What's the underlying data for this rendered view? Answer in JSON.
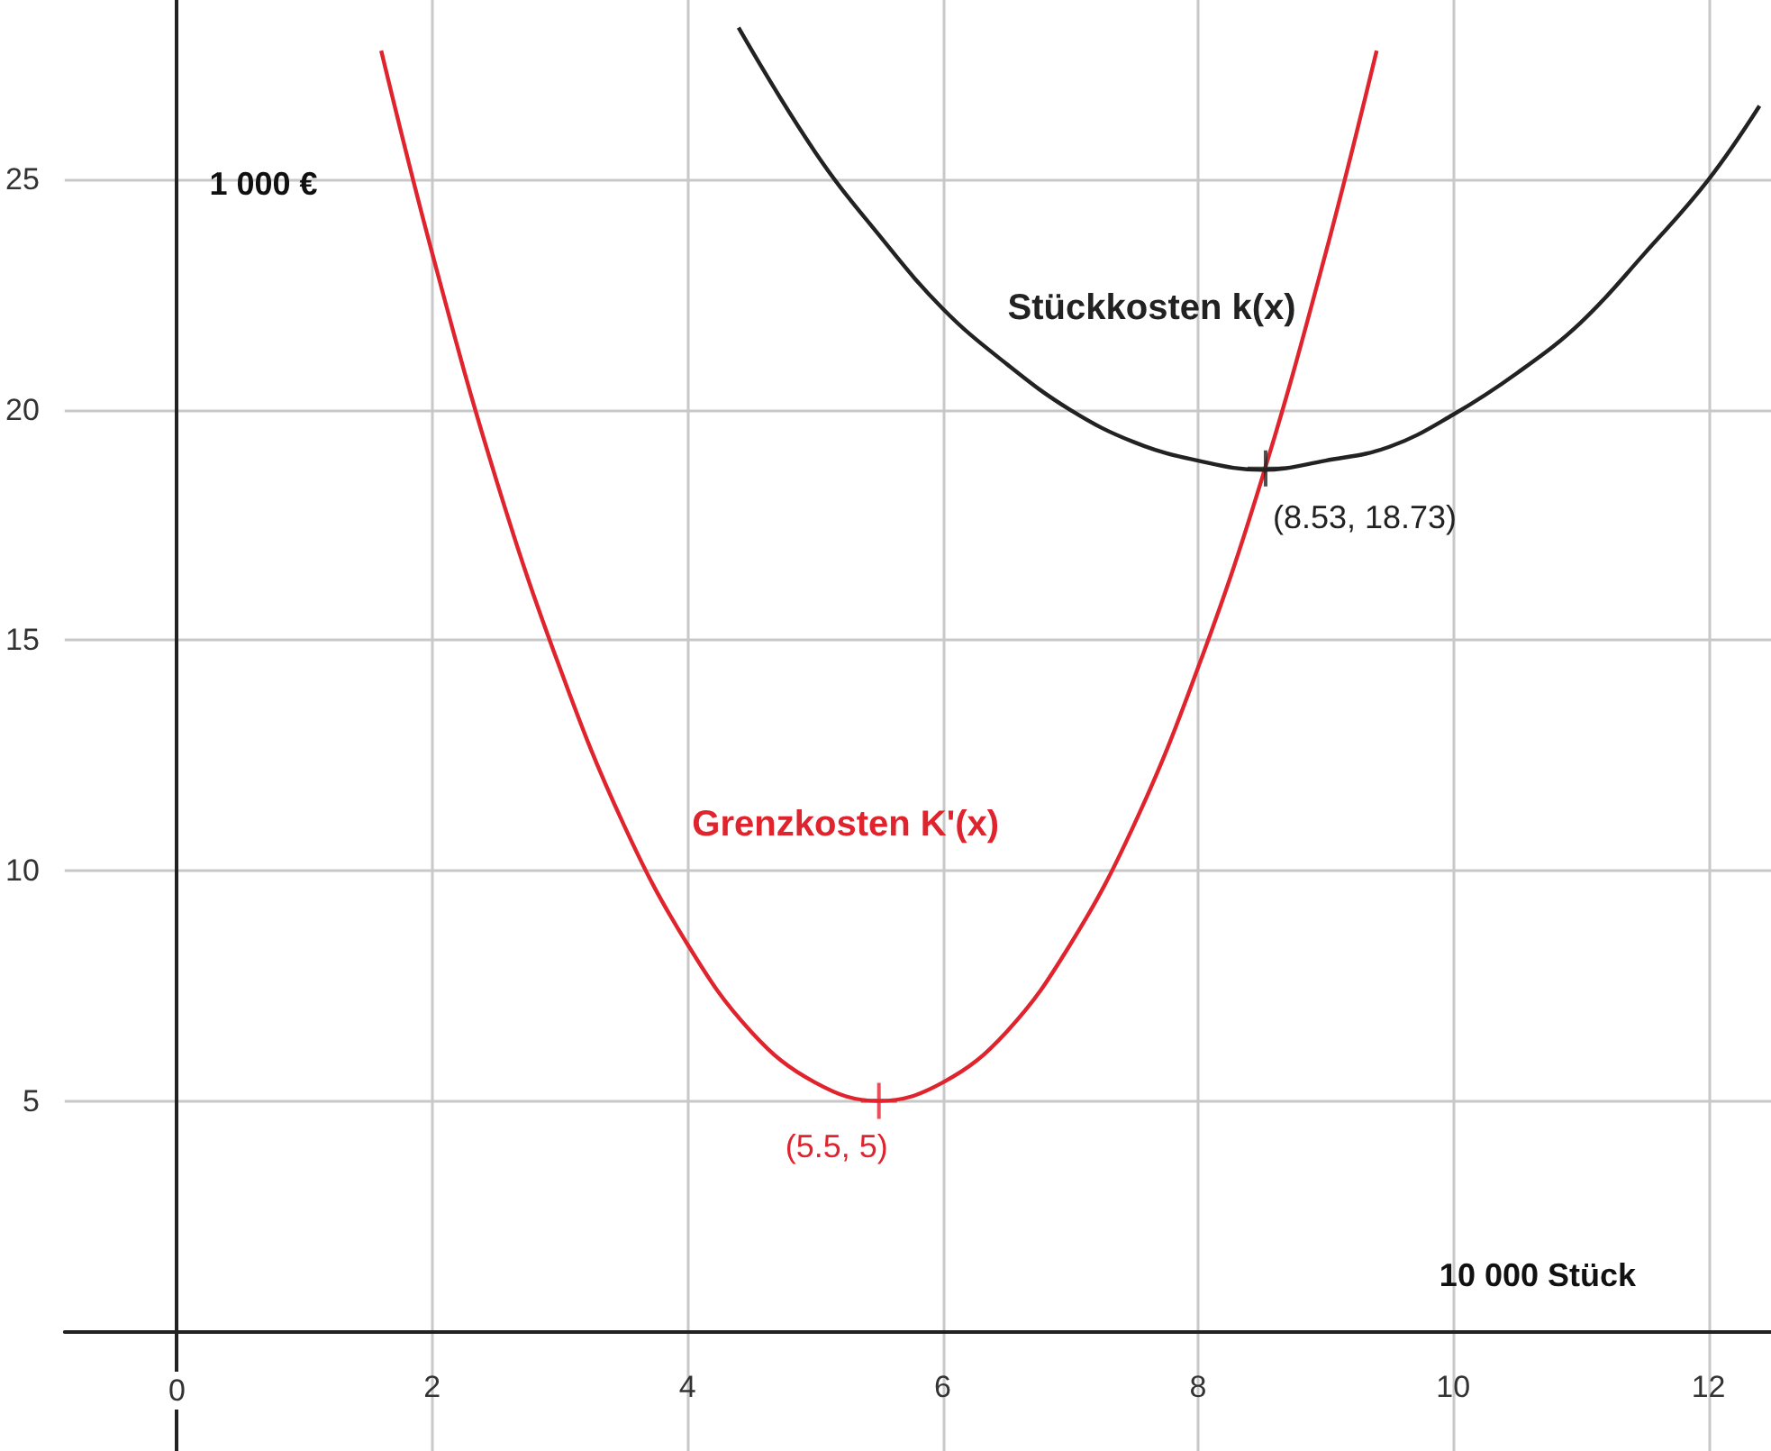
{
  "chart_data": {
    "type": "line",
    "xlabel": "10 000 Stück",
    "ylabel": "1 000 €",
    "xlim": [
      -0.88,
      12.49
    ],
    "ylim": [
      -2.6,
      28.9
    ],
    "xticks": [
      0,
      2,
      4,
      6,
      8,
      10,
      12
    ],
    "yticks": [
      5,
      10,
      15,
      20,
      25
    ],
    "grid": true,
    "marker": "none",
    "series": [
      {
        "name": "Grenzkosten K'(x)",
        "color": "#e0242e",
        "x": [
          1.6,
          2,
          2.5,
          3,
          3.5,
          4,
          4.5,
          5,
          5.5,
          6,
          6.5,
          7,
          7.5,
          8,
          8.5,
          9,
          9.4
        ],
        "values": [
          27.8,
          23.4,
          18.5,
          14.4,
          11,
          8.4,
          6.5,
          5.4,
          5,
          5.4,
          6.5,
          8.4,
          11,
          14.4,
          18.5,
          23.4,
          27.8
        ]
      },
      {
        "name": "Stückkosten k(x)",
        "color": "#222222",
        "x": [
          4.4,
          5,
          5.5,
          6,
          6.5,
          7,
          7.5,
          8,
          8.5,
          9,
          9.5,
          10,
          10.5,
          11,
          11.5,
          12,
          12.4
        ],
        "values": [
          28.3,
          25.6,
          23.8,
          22.2,
          21,
          20,
          19.3,
          18.9,
          18.7,
          18.9,
          19.2,
          19.9,
          20.8,
          21.9,
          23.4,
          25,
          26.6
        ]
      },
      {
        "type": "scatter",
        "marker": "cross",
        "color": "#e0242e",
        "x": [
          5.5
        ],
        "values": [
          5
        ]
      },
      {
        "type": "scatter",
        "marker": "cross",
        "color": "#222222",
        "x": [
          8.53
        ],
        "values": [
          18.73
        ]
      }
    ],
    "annotations": [
      {
        "text": "(5.5, 5)",
        "x": 5.5,
        "y": 5
      },
      {
        "text": "(8.53, 18.73)",
        "x": 8.53,
        "y": 18.73
      }
    ]
  }
}
